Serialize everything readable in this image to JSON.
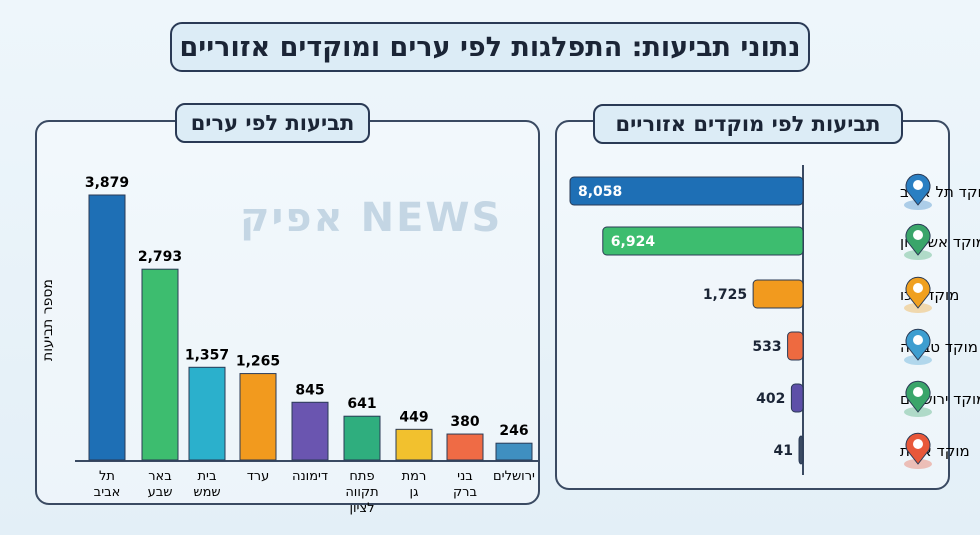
{
  "title": "נתוני תביעות: התפלגות לפי ערים ומוקדים אזוריים",
  "watermark": "אפיק NEWS",
  "chart_data": [
    {
      "type": "bar",
      "title": "תביעות לפי ערים",
      "ylabel": "מספר תביעות",
      "categories": [
        "תל אביב",
        "באר שבע",
        "בית שמש",
        "ערד",
        "דימונה",
        "פתח תקווה לציון",
        "רמת גן",
        "בני ברק",
        "ירושלים"
      ],
      "values": [
        3879,
        2793,
        1357,
        1265,
        845,
        641,
        449,
        380,
        246
      ],
      "labels": [
        "3,879",
        "2,793",
        "1,357",
        "1,265",
        "845",
        "641",
        "449",
        "380",
        "246"
      ],
      "colors": [
        "#1e6fb5",
        "#3dbd6f",
        "#2bb0cc",
        "#f29a1e",
        "#6a55b0",
        "#2fae7e",
        "#f2c12e",
        "#ef6b45",
        "#3f8fc0"
      ]
    },
    {
      "type": "bar",
      "orientation": "horizontal",
      "title": "תביעות לפי מוקדים אזוריים",
      "categories": [
        "מוקד תל אביב",
        "מוקד אשקלון",
        "מוקד עכו",
        "מוקד טבריה",
        "מוקד ירושלים",
        "מוקד אילת"
      ],
      "values": [
        8058,
        6924,
        1725,
        533,
        402,
        41
      ],
      "labels": [
        "8,058",
        "6,924",
        "1,725",
        "533",
        "402",
        "41"
      ],
      "colors": [
        "#1e6fb5",
        "#3dbd6f",
        "#f29a1e",
        "#ee6a40",
        "#5d4fa8",
        "#3a4a62"
      ],
      "icon_colors": [
        "#2a7fc2",
        "#3aa56a",
        "#f0a020",
        "#3e9ed0",
        "#3aa56a",
        "#e8583a"
      ]
    }
  ]
}
